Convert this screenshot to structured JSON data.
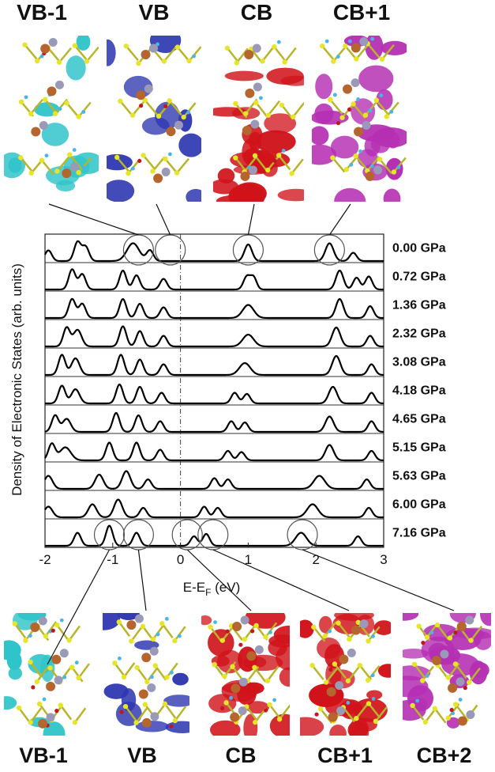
{
  "top_titles": [
    "VB-1",
    "VB",
    "CB",
    "CB+1"
  ],
  "bottom_titles": [
    "VB-1",
    "VB",
    "CB",
    "CB+1",
    "CB+2"
  ],
  "orbital_colors": {
    "VB-1": "#2fc4c9",
    "VB": "#2e37b0",
    "CB": "#d0131a",
    "CB+1": "#d0131a",
    "CB+2": "#b52fb3",
    "top_CB+1": "#b52fb3"
  },
  "chart_data": {
    "type": "line",
    "xlabel": "E-E",
    "xlabel_sub": "F",
    "xlabel_unit": " (eV)",
    "ylabel": "Density of Electronic States (arb. units)",
    "xlim": [
      -2,
      3
    ],
    "xticks": [
      "-2",
      "-1",
      "0",
      "1",
      "2",
      "3"
    ],
    "reference_line_x": 0,
    "series": [
      {
        "name": "0.00 GPa",
        "peaks": [
          [
            -1.95,
            0.45,
            0.05
          ],
          [
            -1.52,
            0.8,
            0.05
          ],
          [
            -1.4,
            0.6,
            0.05
          ],
          [
            -0.7,
            0.75,
            0.09
          ],
          [
            -0.45,
            0.45,
            0.05
          ],
          [
            1.0,
            0.7,
            0.055
          ],
          [
            2.2,
            0.75,
            0.06
          ],
          [
            2.55,
            0.35,
            0.05
          ]
        ]
      },
      {
        "name": "0.72 GPa",
        "peaks": [
          [
            -1.6,
            0.85,
            0.05
          ],
          [
            -1.45,
            0.65,
            0.05
          ],
          [
            -0.85,
            0.8,
            0.05
          ],
          [
            -0.65,
            0.6,
            0.05
          ],
          [
            -0.25,
            0.45,
            0.05
          ],
          [
            0.98,
            0.55,
            0.05
          ],
          [
            1.08,
            0.5,
            0.045
          ],
          [
            2.35,
            0.8,
            0.055
          ],
          [
            2.6,
            0.5,
            0.05
          ],
          [
            2.78,
            0.55,
            0.05
          ]
        ]
      },
      {
        "name": "1.36 GPa",
        "peaks": [
          [
            -1.6,
            0.8,
            0.05
          ],
          [
            -1.45,
            0.6,
            0.05
          ],
          [
            -0.85,
            0.8,
            0.05
          ],
          [
            -0.6,
            0.6,
            0.05
          ],
          [
            -0.25,
            0.45,
            0.05
          ],
          [
            1.0,
            0.55,
            0.08
          ],
          [
            2.35,
            0.8,
            0.055
          ],
          [
            2.8,
            0.5,
            0.05
          ]
        ]
      },
      {
        "name": "2.32 GPa",
        "peaks": [
          [
            -1.68,
            0.8,
            0.05
          ],
          [
            -1.52,
            0.7,
            0.06
          ],
          [
            -0.85,
            0.85,
            0.05
          ],
          [
            -0.6,
            0.65,
            0.05
          ],
          [
            -0.25,
            0.45,
            0.05
          ],
          [
            1.0,
            0.5,
            0.08
          ],
          [
            2.3,
            0.8,
            0.06
          ],
          [
            2.8,
            0.45,
            0.05
          ]
        ]
      },
      {
        "name": "3.08 GPa",
        "peaks": [
          [
            -1.75,
            0.85,
            0.05
          ],
          [
            -1.55,
            0.7,
            0.06
          ],
          [
            -0.88,
            0.85,
            0.05
          ],
          [
            -0.6,
            0.65,
            0.05
          ],
          [
            -0.25,
            0.45,
            0.05
          ],
          [
            0.95,
            0.5,
            0.08
          ],
          [
            2.3,
            0.8,
            0.06
          ],
          [
            2.82,
            0.45,
            0.05
          ]
        ]
      },
      {
        "name": "4.18 GPa",
        "peaks": [
          [
            -1.75,
            0.75,
            0.05
          ],
          [
            -1.55,
            0.6,
            0.06
          ],
          [
            -0.9,
            0.8,
            0.05
          ],
          [
            -0.6,
            0.7,
            0.05
          ],
          [
            -0.28,
            0.45,
            0.05
          ],
          [
            0.8,
            0.45,
            0.05
          ],
          [
            0.98,
            0.4,
            0.05
          ],
          [
            2.25,
            0.7,
            0.06
          ],
          [
            2.82,
            0.45,
            0.05
          ]
        ]
      },
      {
        "name": "4.65 GPa",
        "peaks": [
          [
            -1.85,
            0.7,
            0.05
          ],
          [
            -1.68,
            0.55,
            0.06
          ],
          [
            -0.95,
            0.8,
            0.05
          ],
          [
            -0.62,
            0.7,
            0.05
          ],
          [
            -0.3,
            0.45,
            0.05
          ],
          [
            0.75,
            0.45,
            0.05
          ],
          [
            0.95,
            0.4,
            0.05
          ],
          [
            2.2,
            0.65,
            0.06
          ],
          [
            2.82,
            0.45,
            0.05
          ]
        ]
      },
      {
        "name": "5.15 GPa",
        "peaks": [
          [
            -1.9,
            0.7,
            0.05
          ],
          [
            -1.7,
            0.55,
            0.08
          ],
          [
            -1.05,
            0.75,
            0.05
          ],
          [
            -0.65,
            0.75,
            0.05
          ],
          [
            -0.3,
            0.45,
            0.05
          ],
          [
            0.7,
            0.4,
            0.05
          ],
          [
            0.9,
            0.35,
            0.05
          ],
          [
            2.2,
            0.65,
            0.06
          ],
          [
            2.82,
            0.4,
            0.05
          ]
        ]
      },
      {
        "name": "5.63 GPa",
        "peaks": [
          [
            -1.95,
            0.55,
            0.06
          ],
          [
            -1.2,
            0.6,
            0.06
          ],
          [
            -0.8,
            0.75,
            0.06
          ],
          [
            -0.48,
            0.4,
            0.05
          ],
          [
            0.5,
            0.45,
            0.05
          ],
          [
            0.7,
            0.4,
            0.05
          ],
          [
            2.05,
            0.55,
            0.08
          ],
          [
            2.75,
            0.4,
            0.05
          ]
        ]
      },
      {
        "name": "6.00 GPa",
        "peaks": [
          [
            -1.95,
            0.45,
            0.06
          ],
          [
            -1.3,
            0.55,
            0.06
          ],
          [
            -0.92,
            0.75,
            0.06
          ],
          [
            -0.55,
            0.4,
            0.05
          ],
          [
            0.35,
            0.45,
            0.05
          ],
          [
            0.55,
            0.4,
            0.05
          ],
          [
            1.95,
            0.55,
            0.08
          ],
          [
            2.78,
            0.4,
            0.05
          ]
        ]
      },
      {
        "name": "7.16 GPa",
        "peaks": [
          [
            -1.52,
            0.55,
            0.05
          ],
          [
            -1.05,
            0.85,
            0.05
          ],
          [
            -0.65,
            0.55,
            0.05
          ],
          [
            0.2,
            0.4,
            0.05
          ],
          [
            0.38,
            0.5,
            0.05
          ],
          [
            1.78,
            0.55,
            0.08
          ],
          [
            2.62,
            0.4,
            0.05
          ]
        ]
      }
    ],
    "highlight_circles": [
      {
        "series": 0,
        "x": -0.62
      },
      {
        "series": 0,
        "x": -0.15
      },
      {
        "series": 0,
        "x": 1.0
      },
      {
        "series": 0,
        "x": 2.2
      },
      {
        "series": 10,
        "x": -1.05
      },
      {
        "series": 10,
        "x": -0.62
      },
      {
        "series": 10,
        "x": 0.1
      },
      {
        "series": 10,
        "x": 0.48
      },
      {
        "series": 10,
        "x": 1.8
      }
    ]
  }
}
